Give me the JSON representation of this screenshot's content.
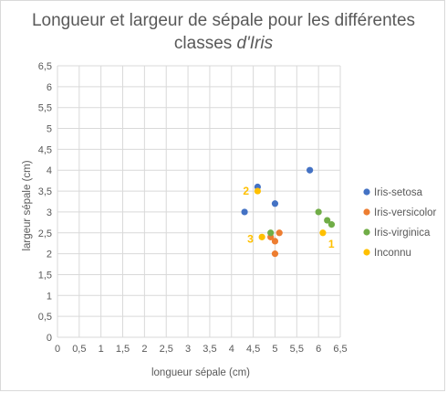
{
  "chart_data": {
    "type": "scatter",
    "title_main": "Longueur et largeur de sépale pour les différentes",
    "title_prefix": "classes ",
    "title_italic": "d'Iris",
    "xlabel": "longueur sépale (cm)",
    "ylabel": "largeur sépale (cm)",
    "xlim": [
      0,
      6.5
    ],
    "ylim": [
      0,
      6.5
    ],
    "x_ticks": [
      "0",
      "0,5",
      "1",
      "1,5",
      "2",
      "2,5",
      "3",
      "3,5",
      "4",
      "4,5",
      "5",
      "5,5",
      "6",
      "6,5"
    ],
    "y_ticks": [
      "0",
      "0,5",
      "1",
      "1,5",
      "2",
      "2,5",
      "3",
      "3,5",
      "4",
      "4,5",
      "5",
      "5,5",
      "6",
      "6,5"
    ],
    "grid": true,
    "legend_position": "right",
    "series": [
      {
        "name": "Iris-setosa",
        "color": "#4472c4",
        "points": [
          [
            4.3,
            3.0
          ],
          [
            4.6,
            3.6
          ],
          [
            5.0,
            3.2
          ],
          [
            5.8,
            4.0
          ]
        ]
      },
      {
        "name": "Iris-versicolor",
        "color": "#ed7d31",
        "points": [
          [
            4.9,
            2.4
          ],
          [
            5.0,
            2.3
          ],
          [
            5.1,
            2.5
          ],
          [
            5.0,
            2.0
          ]
        ]
      },
      {
        "name": "Iris-virginica",
        "color": "#70ad47",
        "points": [
          [
            4.9,
            2.5
          ],
          [
            6.0,
            3.0
          ],
          [
            6.2,
            2.8
          ],
          [
            6.3,
            2.7
          ]
        ]
      },
      {
        "name": "Inconnu",
        "color": "#ffc000",
        "points": [
          [
            4.6,
            3.5
          ],
          [
            4.7,
            2.4
          ],
          [
            6.1,
            2.5
          ]
        ]
      }
    ],
    "annotations": [
      {
        "text": "1",
        "x": 6.1,
        "y": 2.5
      },
      {
        "text": "2",
        "x": 4.6,
        "y": 3.5
      },
      {
        "text": "3",
        "x": 4.7,
        "y": 2.4
      }
    ]
  }
}
